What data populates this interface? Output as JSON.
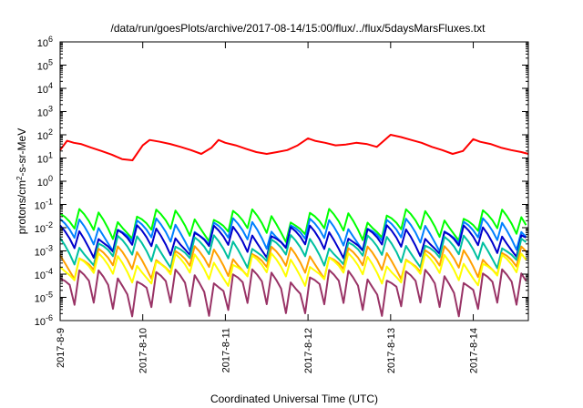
{
  "chart_data": {
    "type": "line",
    "title": "/data/run/goesPlots/archive/2017-08-14/15:00/flux/../flux/5daysMarsFluxes.txt",
    "xlabel": "Coordinated Universal Time (UTC)",
    "ylabel": "protons/cm2-s-sr-MeV",
    "ylabel_parts": {
      "pre": "protons/cm",
      "sup": "2",
      "post": "-s-sr-MeV"
    },
    "y_scale": "log",
    "ylim": [
      1e-06,
      1000000.0
    ],
    "y_ticks": [
      {
        "value": 1e-06,
        "base": "10",
        "exp": "-6"
      },
      {
        "value": 1e-05,
        "base": "10",
        "exp": "-5"
      },
      {
        "value": 0.0001,
        "base": "10",
        "exp": "-4"
      },
      {
        "value": 0.001,
        "base": "10",
        "exp": "-3"
      },
      {
        "value": 0.01,
        "base": "10",
        "exp": "-2"
      },
      {
        "value": 0.1,
        "base": "10",
        "exp": "-1"
      },
      {
        "value": 1,
        "base": "10",
        "exp": "0"
      },
      {
        "value": 10,
        "base": "10",
        "exp": "1"
      },
      {
        "value": 100,
        "base": "10",
        "exp": "2"
      },
      {
        "value": 1000,
        "base": "10",
        "exp": "3"
      },
      {
        "value": 10000,
        "base": "10",
        "exp": "4"
      },
      {
        "value": 100000,
        "base": "10",
        "exp": "5"
      },
      {
        "value": 1000000,
        "base": "10",
        "exp": "6"
      }
    ],
    "xlim": [
      "2017-08-09",
      "2017-08-14 16:00"
    ],
    "x_ticks": [
      "2017-8-9",
      "2017-8-10",
      "2017-8-11",
      "2017-8-12",
      "2017-8-13",
      "2017-8-14"
    ],
    "grid": false,
    "legend": "none",
    "series": [
      {
        "color": "#ff0000",
        "x": [
          "2017-08-09 00:00",
          "2017-08-09 02:00",
          "2017-08-09 04:00",
          "2017-08-09 06:00",
          "2017-08-09 09:00",
          "2017-08-09 12:00",
          "2017-08-09 15:00",
          "2017-08-09 18:00",
          "2017-08-09 21:00",
          "2017-08-10 00:00",
          "2017-08-10 02:00",
          "2017-08-10 05:00",
          "2017-08-10 08:00",
          "2017-08-10 11:00",
          "2017-08-10 14:00",
          "2017-08-10 17:00",
          "2017-08-10 20:00",
          "2017-08-10 22:00",
          "2017-08-11 00:00",
          "2017-08-11 03:00",
          "2017-08-11 06:00",
          "2017-08-11 09:00",
          "2017-08-11 12:00",
          "2017-08-11 15:00",
          "2017-08-11 18:00",
          "2017-08-11 21:00",
          "2017-08-12 00:00",
          "2017-08-12 02:00",
          "2017-08-12 05:00",
          "2017-08-12 08:00",
          "2017-08-12 11:00",
          "2017-08-12 14:00",
          "2017-08-12 17:00",
          "2017-08-12 20:00",
          "2017-08-12 22:00",
          "2017-08-13 00:00",
          "2017-08-13 03:00",
          "2017-08-13 06:00",
          "2017-08-13 09:00",
          "2017-08-13 12:00",
          "2017-08-13 15:00",
          "2017-08-13 18:00",
          "2017-08-13 21:00",
          "2017-08-14 00:00",
          "2017-08-14 02:00",
          "2017-08-14 05:00",
          "2017-08-14 08:00",
          "2017-08-14 11:00",
          "2017-08-14 14:00",
          "2017-08-14 16:00"
        ],
        "y": [
          22,
          55,
          45,
          40,
          28,
          20,
          14,
          9,
          8,
          35,
          60,
          50,
          40,
          30,
          22,
          15,
          28,
          60,
          45,
          35,
          25,
          18,
          15,
          18,
          22,
          35,
          70,
          55,
          45,
          35,
          38,
          45,
          40,
          30,
          55,
          100,
          80,
          60,
          45,
          30,
          22,
          15,
          20,
          65,
          50,
          40,
          28,
          22,
          18,
          15
        ]
      },
      {
        "color": "#00ff00",
        "base": 0.02,
        "phase": 0.0
      },
      {
        "color": "#0080ff",
        "base": 0.008,
        "phase": 0.15
      },
      {
        "color": "#0000cc",
        "base": 0.004,
        "phase": 0.3
      },
      {
        "color": "#00c0a0",
        "base": 0.0015,
        "phase": 0.45
      },
      {
        "color": "#ffa000",
        "base": 0.0005,
        "phase": 0.6
      },
      {
        "color": "#ffff00",
        "base": 0.00025,
        "phase": 0.75
      },
      {
        "color": "#993366",
        "base": 5e-05,
        "phase": 0.9
      }
    ]
  }
}
